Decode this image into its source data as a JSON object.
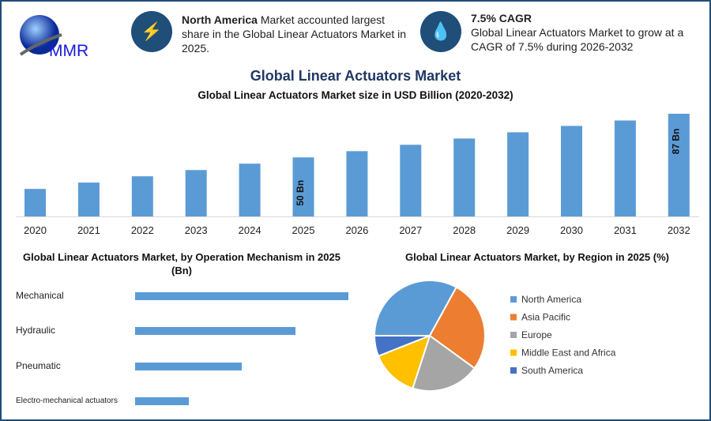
{
  "header": {
    "logo_text": "MMR",
    "info1": {
      "icon": "lightning-icon",
      "bold": "North America",
      "text": " Market accounted largest share in the Global Linear Actuators Market in 2025."
    },
    "info2": {
      "icon": "growth-drop-icon",
      "bold": "7.5% CAGR",
      "text": "Global Linear Actuators Market to grow at a CAGR of 7.5% during 2026-2032"
    }
  },
  "title": "Global Linear Actuators Market",
  "chart_data": [
    {
      "type": "bar",
      "title": "Global Linear Actuators Market size in USD Billion (2020-2032)",
      "categories": [
        "2020",
        "2021",
        "2022",
        "2023",
        "2024",
        "2025",
        "2026",
        "2027",
        "2028",
        "2029",
        "2030",
        "2031",
        "2032"
      ],
      "values": [
        23.3,
        28.7,
        34,
        39.3,
        44.7,
        50,
        55.3,
        60.7,
        66,
        71.3,
        76.7,
        81.3,
        87
      ],
      "data_labels": {
        "2025": "50 Bn",
        "2032": "87 Bn"
      },
      "color": "#5b9bd5",
      "ylim": [
        0,
        90
      ],
      "grid": false
    },
    {
      "type": "bar",
      "orientation": "horizontal",
      "title": "Global Linear Actuators Market, by Operation Mechanism in 2025 (Bn)",
      "categories": [
        "Mechanical",
        "Hydraulic",
        "Pneumatic",
        "Electro-mechanical actuators"
      ],
      "values": [
        100,
        75,
        50,
        25
      ],
      "color": "#5b9bd5",
      "grid": false
    },
    {
      "type": "pie",
      "title": "Global Linear Actuators Market, by Region in 2025 (%)",
      "labels": [
        "North America",
        "Asia Pacific",
        "Europe",
        "Middle East and Africa",
        "South America"
      ],
      "values": [
        33,
        27,
        20,
        14,
        6
      ],
      "colors": [
        "#5b9bd5",
        "#ed7d31",
        "#a5a5a5",
        "#ffc000",
        "#4472c4"
      ],
      "legend": "right"
    }
  ]
}
